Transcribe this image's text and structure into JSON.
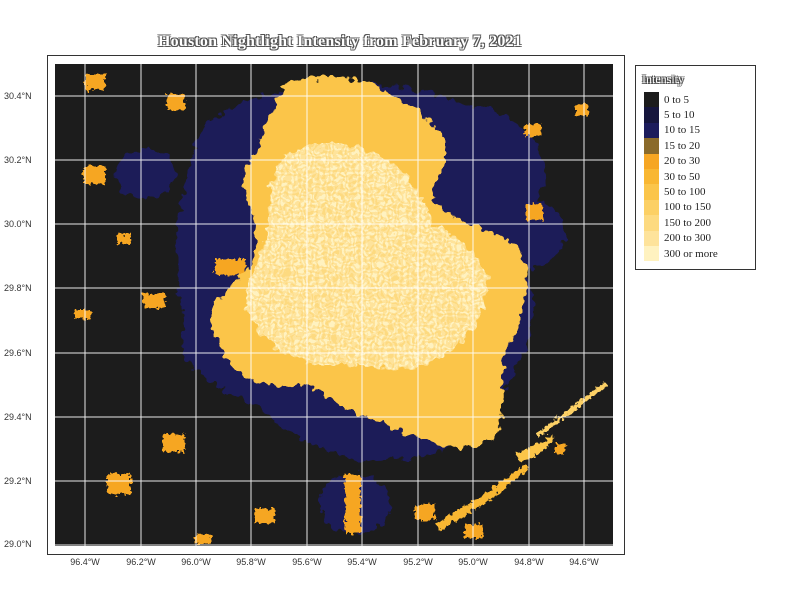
{
  "title": "Houston Nightlight Intensity from February 7, 2021",
  "legend": {
    "title": "Intensity",
    "items": [
      {
        "label": "0 to 5",
        "color": "#1c1c1c"
      },
      {
        "label": "5 to 10",
        "color": "#16163d"
      },
      {
        "label": "10 to 15",
        "color": "#1c1c5c"
      },
      {
        "label": "15 to 20",
        "color": "#8a6a2a"
      },
      {
        "label": "20 to 30",
        "color": "#f6a623"
      },
      {
        "label": "30 to 50",
        "color": "#f9b732"
      },
      {
        "label": "50 to 100",
        "color": "#fbc54a"
      },
      {
        "label": "100 to 150",
        "color": "#fcd065"
      },
      {
        "label": "150 to 200",
        "color": "#fdda80"
      },
      {
        "label": "200 to 300",
        "color": "#fee39b"
      },
      {
        "label": "300 or more",
        "color": "#fff2c0"
      }
    ]
  },
  "axes": {
    "x_ticks": [
      "96.4°W",
      "96.2°W",
      "96.0°W",
      "95.8°W",
      "95.6°W",
      "95.4°W",
      "95.2°W",
      "95.0°W",
      "94.8°W",
      "94.6°W"
    ],
    "y_ticks": [
      "30.4°N",
      "30.2°N",
      "30.0°N",
      "29.8°N",
      "29.6°N",
      "29.4°N",
      "29.2°N",
      "29.0°N"
    ]
  }
}
